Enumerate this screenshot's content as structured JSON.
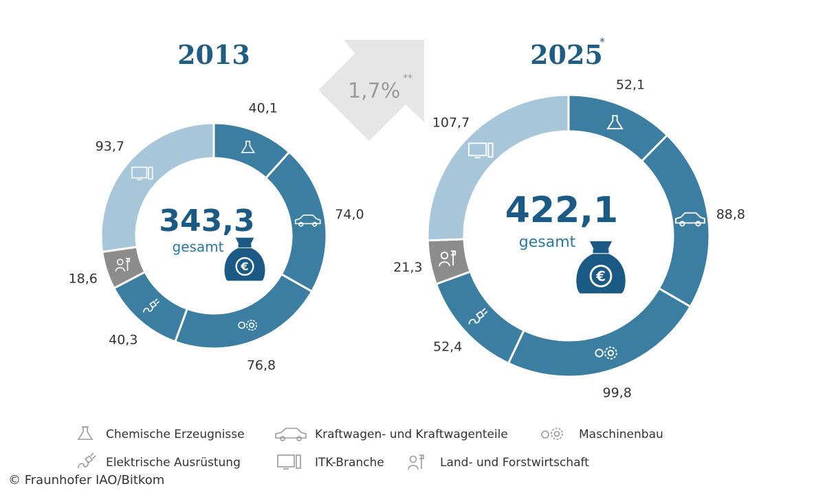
{
  "chart_data": [
    {
      "type": "donut",
      "title": "2013",
      "title_marker": "",
      "total": "343,3",
      "total_caption": "gesamt",
      "categories": [
        "Chemische Erzeugnisse",
        "Kraftwagen- und Kraftwagenteile",
        "Maschinenbau",
        "Elektrische Ausrüstung",
        "Land- und Forstwirtschaft",
        "ITK-Branche"
      ],
      "values": [
        40.1,
        74.0,
        76.8,
        40.3,
        18.6,
        93.7
      ],
      "value_labels": [
        "40,1",
        "74,0",
        "76,8",
        "40,3",
        "18,6",
        "93,7"
      ]
    },
    {
      "type": "donut",
      "title": "2025",
      "title_marker": "*",
      "total": "422,1",
      "total_caption": "gesamt",
      "categories": [
        "Chemische Erzeugnisse",
        "Kraftwagen- und Kraftwagenteile",
        "Maschinenbau",
        "Elektrische Ausrüstung",
        "Land- und Forstwirtschaft",
        "ITK-Branche"
      ],
      "values": [
        52.1,
        88.8,
        99.8,
        52.4,
        21.3,
        107.7
      ],
      "value_labels": [
        "52,1",
        "88,8",
        "99,8",
        "52,4",
        "21,3",
        "107,7"
      ]
    }
  ],
  "growth": {
    "label": "1,7%",
    "marker": "**"
  },
  "legend": {
    "items": [
      {
        "label": "Chemische Erzeugnisse",
        "icon": "flask-icon"
      },
      {
        "label": "Kraftwagen- und Kraftwagenteile",
        "icon": "car-icon"
      },
      {
        "label": "Maschinenbau",
        "icon": "gears-icon"
      },
      {
        "label": "Elektrische Ausrüstung",
        "icon": "plug-icon"
      },
      {
        "label": "ITK-Branche",
        "icon": "monitor-icon"
      },
      {
        "label": "Land- und Forstwirtschaft",
        "icon": "farmer-icon"
      }
    ]
  },
  "credit": "© Fraunhofer IAO/Bitkom",
  "colors": {
    "dark_segment": "#3b7ea1",
    "itk_segment": "#a7c6da",
    "agri_segment": "#8c8c8c",
    "arrow": "#e6e6e6",
    "money_bag": "#1b5a85",
    "title": "#1f5d82"
  }
}
